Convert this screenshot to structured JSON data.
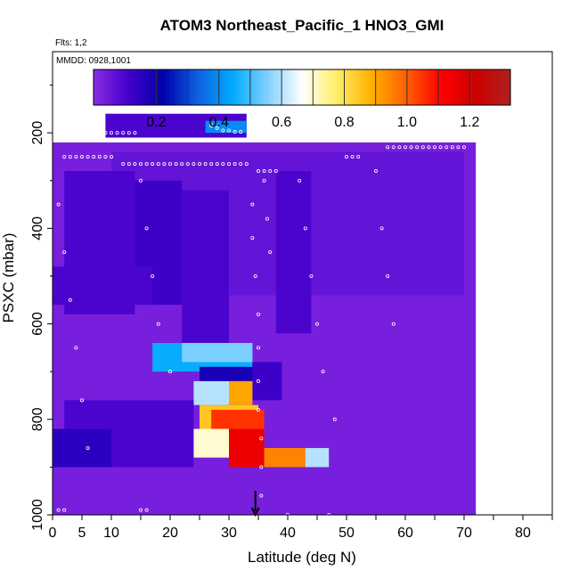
{
  "chart_data": {
    "type": "heatmap",
    "title": "ATOM3 Northeast_Pacific_1 HNO3_GMI",
    "flights_label": "Flts: 1,2",
    "dates_label": "MMDD: 0928,1001",
    "xlabel": "Latitude (deg N)",
    "ylabel": "PSXC (mbar)",
    "xlim": [
      0,
      85
    ],
    "ylim": [
      1000,
      30
    ],
    "x_ticks_major": [
      0,
      10,
      20,
      30,
      40,
      50,
      60,
      70,
      80
    ],
    "x_tick_labels": [
      "0",
      "5",
      "10",
      "20",
      "30",
      "40",
      "50",
      "60",
      "70",
      "80"
    ],
    "x_tick_label_values": [
      0,
      5,
      10,
      20,
      30,
      40,
      50,
      60,
      70,
      80
    ],
    "y_ticks": [
      200,
      400,
      600,
      800,
      1000
    ],
    "y_tick_labels": [
      "200",
      "400",
      "600",
      "800",
      "1000"
    ],
    "colorbar": {
      "range": [
        0,
        1.33
      ],
      "tick_values": [
        0.2,
        0.4,
        0.6,
        0.8,
        1.0,
        1.2
      ],
      "tick_labels": [
        "0.2",
        "0.4",
        "0.6",
        "0.8",
        "1.0",
        "1.2"
      ],
      "colors": [
        "#8a2be2",
        "#4400cc",
        "#0000aa",
        "#1060e0",
        "#00aaff",
        "#80d0ff",
        "#ffffff",
        "#ffee66",
        "#ffb000",
        "#ff6000",
        "#ff0000",
        "#cc0000",
        "#b02020"
      ]
    },
    "background_value": 0.05,
    "regions": [
      {
        "lat": [
          0,
          72
        ],
        "p": [
          220,
          1000
        ],
        "value": 0.03
      },
      {
        "lat": [
          10,
          70
        ],
        "p": [
          240,
          540
        ],
        "value": 0.06
      },
      {
        "lat": [
          2,
          14
        ],
        "p": [
          280,
          580
        ],
        "value": 0.1
      },
      {
        "lat": [
          14,
          22
        ],
        "p": [
          300,
          560
        ],
        "value": 0.12
      },
      {
        "lat": [
          22,
          30
        ],
        "p": [
          320,
          700
        ],
        "value": 0.1
      },
      {
        "lat": [
          38,
          44
        ],
        "p": [
          280,
          620
        ],
        "value": 0.1
      },
      {
        "lat": [
          9,
          33
        ],
        "p": [
          160,
          210
        ],
        "value": 0.1
      },
      {
        "lat": [
          26,
          33
        ],
        "p": [
          175,
          200
        ],
        "value": 0.4
      },
      {
        "lat": [
          0,
          17
        ],
        "p": [
          480,
          560
        ],
        "value": 0.1
      },
      {
        "lat": [
          17,
          34
        ],
        "p": [
          640,
          700
        ],
        "value": 0.45
      },
      {
        "lat": [
          22,
          34
        ],
        "p": [
          640,
          680
        ],
        "value": 0.55
      },
      {
        "lat": [
          25,
          35
        ],
        "p": [
          690,
          720
        ],
        "value": 0.18
      },
      {
        "lat": [
          34,
          39
        ],
        "p": [
          680,
          760
        ],
        "value": 0.12
      },
      {
        "lat": [
          24,
          30
        ],
        "p": [
          720,
          770
        ],
        "value": 0.6
      },
      {
        "lat": [
          30,
          34
        ],
        "p": [
          720,
          770
        ],
        "value": 0.9
      },
      {
        "lat": [
          25,
          35
        ],
        "p": [
          770,
          820
        ],
        "value": 0.85
      },
      {
        "lat": [
          27,
          36
        ],
        "p": [
          780,
          840
        ],
        "value": 1.05
      },
      {
        "lat": [
          22,
          30
        ],
        "p": [
          820,
          880
        ],
        "value": 0.7
      },
      {
        "lat": [
          30,
          36
        ],
        "p": [
          820,
          900
        ],
        "value": 1.15
      },
      {
        "lat": [
          36,
          43
        ],
        "p": [
          860,
          900
        ],
        "value": 0.95
      },
      {
        "lat": [
          43,
          47
        ],
        "p": [
          860,
          900
        ],
        "value": 0.6
      },
      {
        "lat": [
          2,
          24
        ],
        "p": [
          760,
          900
        ],
        "value": 0.1
      },
      {
        "lat": [
          0,
          10
        ],
        "p": [
          820,
          900
        ],
        "value": 0.15
      }
    ],
    "flight_track_points": [
      [
        9,
        200
      ],
      [
        10,
        200
      ],
      [
        11,
        200
      ],
      [
        12,
        200
      ],
      [
        13,
        200
      ],
      [
        14,
        200
      ],
      [
        27,
        185
      ],
      [
        28,
        190
      ],
      [
        29,
        195
      ],
      [
        30,
        195
      ],
      [
        31,
        198
      ],
      [
        32,
        198
      ],
      [
        2,
        250
      ],
      [
        3,
        250
      ],
      [
        4,
        250
      ],
      [
        5,
        250
      ],
      [
        6,
        250
      ],
      [
        7,
        250
      ],
      [
        8,
        250
      ],
      [
        9,
        250
      ],
      [
        10,
        250
      ],
      [
        12,
        265
      ],
      [
        13,
        265
      ],
      [
        14,
        265
      ],
      [
        15,
        265
      ],
      [
        16,
        265
      ],
      [
        17,
        265
      ],
      [
        18,
        265
      ],
      [
        19,
        265
      ],
      [
        20,
        265
      ],
      [
        21,
        265
      ],
      [
        22,
        265
      ],
      [
        23,
        265
      ],
      [
        24,
        265
      ],
      [
        25,
        265
      ],
      [
        26,
        265
      ],
      [
        27,
        265
      ],
      [
        28,
        265
      ],
      [
        29,
        265
      ],
      [
        30,
        265
      ],
      [
        31,
        265
      ],
      [
        32,
        265
      ],
      [
        33,
        265
      ],
      [
        35,
        280
      ],
      [
        36,
        280
      ],
      [
        37,
        280
      ],
      [
        38,
        280
      ],
      [
        57,
        230
      ],
      [
        58,
        230
      ],
      [
        59,
        230
      ],
      [
        60,
        230
      ],
      [
        61,
        230
      ],
      [
        62,
        230
      ],
      [
        63,
        230
      ],
      [
        64,
        230
      ],
      [
        65,
        230
      ],
      [
        66,
        230
      ],
      [
        67,
        230
      ],
      [
        68,
        230
      ],
      [
        69,
        230
      ],
      [
        70,
        230
      ],
      [
        50,
        250
      ],
      [
        51,
        250
      ],
      [
        52,
        250
      ],
      [
        34,
        350
      ],
      [
        34,
        420
      ],
      [
        34.5,
        500
      ],
      [
        35,
        580
      ],
      [
        35,
        650
      ],
      [
        35,
        720
      ],
      [
        35,
        780
      ],
      [
        35.5,
        840
      ],
      [
        35.5,
        900
      ],
      [
        35.5,
        960
      ],
      [
        36,
        300
      ],
      [
        36.5,
        380
      ],
      [
        37,
        450
      ],
      [
        1,
        350
      ],
      [
        2,
        450
      ],
      [
        3,
        550
      ],
      [
        4,
        650
      ],
      [
        5,
        760
      ],
      [
        6,
        860
      ],
      [
        15,
        300
      ],
      [
        16,
        400
      ],
      [
        17,
        500
      ],
      [
        18,
        600
      ],
      [
        20,
        700
      ],
      [
        42,
        300
      ],
      [
        43,
        400
      ],
      [
        44,
        500
      ],
      [
        45,
        600
      ],
      [
        46,
        700
      ],
      [
        48,
        800
      ],
      [
        55,
        280
      ],
      [
        56,
        400
      ],
      [
        57,
        500
      ],
      [
        58,
        600
      ],
      [
        1,
        990
      ],
      [
        2,
        990
      ],
      [
        15,
        990
      ],
      [
        16,
        990
      ],
      [
        40,
        1000
      ],
      [
        47,
        1000
      ]
    ],
    "marker": {
      "lat": 34.5,
      "p_from": 950,
      "p_to": 1000
    }
  }
}
